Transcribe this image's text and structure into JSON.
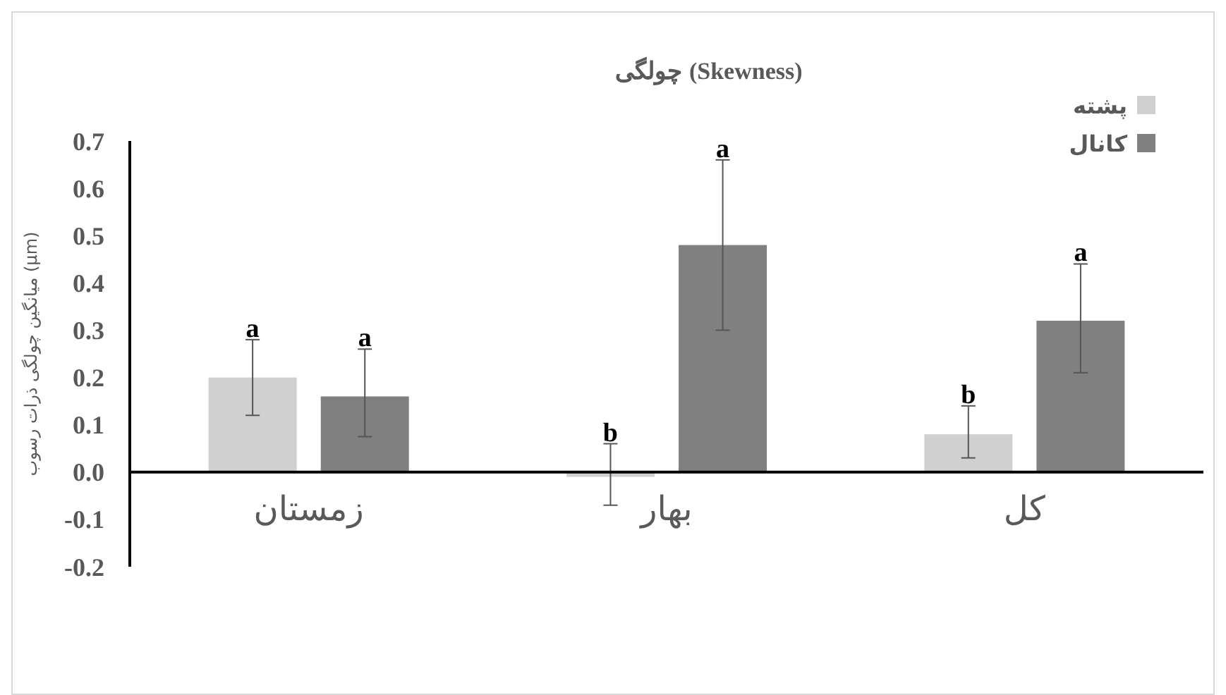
{
  "chart_data": {
    "type": "bar",
    "title": "چولگی (Skewness)",
    "ylabel": "میانگین چولگی ذرات رسوب (μm)",
    "categories": [
      "زمستان",
      "بهار",
      "کل"
    ],
    "series": [
      {
        "name": "پشته",
        "color": "#d0d0d0",
        "values": [
          0.2,
          -0.01,
          0.08
        ],
        "errors": [
          [
            0.12,
            0.28
          ],
          [
            -0.07,
            0.06
          ],
          [
            0.03,
            0.14
          ]
        ]
      },
      {
        "name": "کانال",
        "color": "#808080",
        "values": [
          0.16,
          0.48,
          0.32
        ],
        "errors": [
          [
            0.075,
            0.26
          ],
          [
            0.3,
            0.66
          ],
          [
            0.21,
            0.44
          ]
        ]
      }
    ],
    "ylim": [
      -0.2,
      0.7
    ],
    "yticks": [
      -0.2,
      -0.1,
      {
        "value": 0,
        "label": "0.0"
      },
      0.1,
      0.2,
      0.3,
      0.4,
      0.5,
      0.6,
      0.7
    ],
    "legend": "top right",
    "grid": false,
    "annotations": [
      "a",
      "a",
      "b",
      "a",
      "b",
      "a"
    ]
  }
}
